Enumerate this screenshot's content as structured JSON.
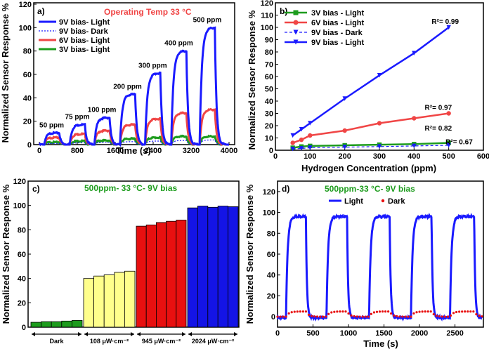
{
  "colors": {
    "blue": "#1a1aff",
    "red": "#f04545",
    "green": "#1d9c1d",
    "yellow": "#ffff8c",
    "barRed": "#e81010",
    "barBlue": "#1414e6"
  },
  "chart_data": [
    {
      "panel": "a)",
      "type": "line",
      "subtitle": "Operating Temp 33 °C",
      "xlabel": "Time (s)",
      "ylabel": "Normalized Sensor Response %",
      "xlim": [
        0,
        4000
      ],
      "ylim": [
        0,
        120
      ],
      "xticks": [
        "0",
        "800",
        "1600",
        "2400",
        "3200",
        "4000"
      ],
      "yticks": [
        "0",
        "20",
        "40",
        "60",
        "80",
        "100",
        "120"
      ],
      "legend": [
        "9V bias- Light",
        "9V bias- Dark",
        "6V bias- Light",
        "3V bias- Light"
      ],
      "concentration_labels": [
        "50 ppm",
        "75 ppm",
        "100 ppm",
        "200 ppm",
        "300 ppm",
        "400 ppm",
        "500 ppm"
      ],
      "pulses": [
        {
          "start": 100,
          "end": 420
        },
        {
          "start": 640,
          "end": 960
        },
        {
          "start": 1160,
          "end": 1480
        },
        {
          "start": 1700,
          "end": 2020
        },
        {
          "start": 2230,
          "end": 2550
        },
        {
          "start": 2780,
          "end": 3100
        },
        {
          "start": 3380,
          "end": 3700
        }
      ],
      "series": [
        {
          "name": "9V bias- Light",
          "peaks": [
            10,
            17,
            23,
            43,
            61,
            80,
            100
          ]
        },
        {
          "name": "9V bias- Dark",
          "peaks": [
            1,
            1.5,
            2,
            2.5,
            3,
            3.5,
            4
          ]
        },
        {
          "name": "6V bias- Light",
          "peaks": [
            6,
            9,
            12,
            17,
            22,
            27,
            30
          ]
        },
        {
          "name": "3V bias- Light",
          "peaks": [
            2,
            3,
            3.5,
            5,
            6,
            7,
            7
          ]
        }
      ]
    },
    {
      "panel": "b)",
      "type": "line",
      "xlabel": "Hydrogen Concentration (ppm)",
      "ylabel": "Normalized Sensor Response %",
      "xlim": [
        0,
        600
      ],
      "ylim": [
        0,
        120
      ],
      "xticks": [
        "0",
        "100",
        "200",
        "300",
        "400",
        "500",
        "600"
      ],
      "yticks": [
        "0",
        "10",
        "20",
        "30",
        "40",
        "50",
        "60",
        "70",
        "80",
        "90",
        "100",
        "110",
        "120"
      ],
      "x": [
        50,
        75,
        100,
        200,
        300,
        400,
        500
      ],
      "series": [
        {
          "name": "3V bias - Light",
          "values": [
            2,
            3,
            3.5,
            4,
            4.5,
            5,
            6
          ]
        },
        {
          "name": "6V bias - Light",
          "values": [
            6,
            8.5,
            12,
            16,
            22,
            26,
            30
          ]
        },
        {
          "name": "9V bias  - Dark",
          "values": [
            1,
            1.5,
            2,
            2.5,
            3,
            3.5,
            4
          ]
        },
        {
          "name": "9V bias - Light",
          "values": [
            12,
            17,
            22,
            42,
            61,
            79,
            100
          ]
        }
      ],
      "r2": [
        "R²= 0.99",
        "R²= 0.97",
        "R²= 0.82",
        "R²= 0.67"
      ]
    },
    {
      "panel": "c)",
      "type": "bar",
      "subtitle": "500ppm- 33 °C- 9V bias",
      "ylabel": "Normalized Sensor Response %",
      "ylim": [
        0,
        120
      ],
      "yticks": [
        "0",
        "20",
        "40",
        "60",
        "80",
        "100",
        "120"
      ],
      "groups": [
        {
          "label": "Dark",
          "values": [
            4,
            4.5,
            4.5,
            5,
            5.5
          ]
        },
        {
          "label": "108 μW·cm⁻²",
          "values": [
            40,
            42,
            43,
            45,
            46
          ]
        },
        {
          "label": "945 μW·cm⁻²",
          "values": [
            83,
            84,
            86,
            87,
            88
          ]
        },
        {
          "label": "2024 μW·cm⁻²",
          "values": [
            98,
            99.5,
            98.5,
            99.5,
            99
          ]
        }
      ]
    },
    {
      "panel": "d)",
      "type": "line",
      "subtitle": "500ppm-33 °C- 9V bias",
      "xlabel": "Time (s)",
      "ylabel": "Normalized Sensor Response %",
      "xlim": [
        0,
        2900
      ],
      "ylim": [
        -10,
        130
      ],
      "xticks": [
        "0",
        "500",
        "1000",
        "1500",
        "2000",
        "2500"
      ],
      "yticks": [
        "0",
        "20",
        "40",
        "60",
        "80",
        "100",
        "120"
      ],
      "legend": [
        "Light",
        "Dark"
      ],
      "pulses": [
        {
          "start": 120,
          "end": 400
        },
        {
          "start": 690,
          "end": 980
        },
        {
          "start": 1290,
          "end": 1580
        },
        {
          "start": 1880,
          "end": 2170
        },
        {
          "start": 2430,
          "end": 2770
        }
      ],
      "series": [
        {
          "name": "Light",
          "peak": 97
        },
        {
          "name": "Dark",
          "peak": 5
        }
      ]
    }
  ]
}
